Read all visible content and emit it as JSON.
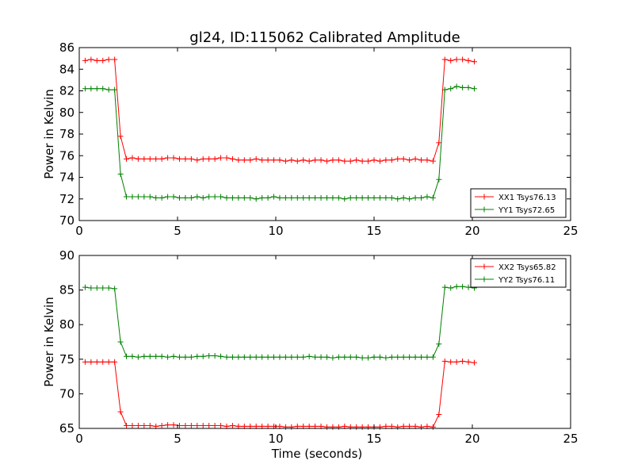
{
  "title": "gl24, ID:115062 Calibrated Amplitude",
  "chart_data": [
    {
      "type": "line",
      "ylabel": "Power in Kelvin",
      "xlabel": "",
      "xlim": [
        0,
        25
      ],
      "ylim": [
        70,
        86
      ],
      "xticks": [
        0,
        5,
        10,
        15,
        20,
        25
      ],
      "yticks": [
        70,
        72,
        74,
        76,
        78,
        80,
        82,
        84,
        86
      ],
      "legend_position": "lower-right",
      "series": [
        {
          "name": "XX1 Tsys76.13",
          "color": "#ff0000",
          "x": [
            0.3,
            0.6,
            0.9,
            1.2,
            1.5,
            1.8,
            2.1,
            2.4,
            2.7,
            3.0,
            3.3,
            3.6,
            3.9,
            4.2,
            4.5,
            4.8,
            5.1,
            5.4,
            5.7,
            6.0,
            6.3,
            6.6,
            6.9,
            7.2,
            7.5,
            7.8,
            8.1,
            8.4,
            8.7,
            9.0,
            9.3,
            9.6,
            9.9,
            10.2,
            10.5,
            10.8,
            11.1,
            11.4,
            11.7,
            12.0,
            12.3,
            12.6,
            12.9,
            13.2,
            13.5,
            13.8,
            14.1,
            14.4,
            14.7,
            15.0,
            15.3,
            15.6,
            15.9,
            16.2,
            16.5,
            16.8,
            17.1,
            17.4,
            17.7,
            18.0,
            18.3,
            18.6,
            18.9,
            19.2,
            19.5,
            19.8,
            20.1
          ],
          "values": [
            84.8,
            84.9,
            84.8,
            84.8,
            84.9,
            84.9,
            77.8,
            75.7,
            75.8,
            75.7,
            75.7,
            75.7,
            75.7,
            75.7,
            75.8,
            75.8,
            75.7,
            75.7,
            75.7,
            75.6,
            75.7,
            75.7,
            75.7,
            75.8,
            75.8,
            75.7,
            75.6,
            75.6,
            75.6,
            75.7,
            75.6,
            75.6,
            75.6,
            75.6,
            75.5,
            75.6,
            75.5,
            75.6,
            75.5,
            75.6,
            75.6,
            75.5,
            75.6,
            75.6,
            75.5,
            75.5,
            75.6,
            75.5,
            75.5,
            75.6,
            75.5,
            75.6,
            75.6,
            75.7,
            75.7,
            75.6,
            75.7,
            75.6,
            75.6,
            75.5,
            77.2,
            84.9,
            84.8,
            84.9,
            84.9,
            84.8,
            84.7
          ]
        },
        {
          "name": "YY1 Tsys72.65",
          "color": "#008000",
          "x": [
            0.3,
            0.6,
            0.9,
            1.2,
            1.5,
            1.8,
            2.1,
            2.4,
            2.7,
            3.0,
            3.3,
            3.6,
            3.9,
            4.2,
            4.5,
            4.8,
            5.1,
            5.4,
            5.7,
            6.0,
            6.3,
            6.6,
            6.9,
            7.2,
            7.5,
            7.8,
            8.1,
            8.4,
            8.7,
            9.0,
            9.3,
            9.6,
            9.9,
            10.2,
            10.5,
            10.8,
            11.1,
            11.4,
            11.7,
            12.0,
            12.3,
            12.6,
            12.9,
            13.2,
            13.5,
            13.8,
            14.1,
            14.4,
            14.7,
            15.0,
            15.3,
            15.6,
            15.9,
            16.2,
            16.5,
            16.8,
            17.1,
            17.4,
            17.7,
            18.0,
            18.3,
            18.6,
            18.9,
            19.2,
            19.5,
            19.8,
            20.1
          ],
          "values": [
            82.2,
            82.2,
            82.2,
            82.2,
            82.1,
            82.1,
            74.3,
            72.2,
            72.2,
            72.2,
            72.2,
            72.2,
            72.1,
            72.1,
            72.2,
            72.2,
            72.1,
            72.1,
            72.1,
            72.2,
            72.1,
            72.2,
            72.2,
            72.2,
            72.1,
            72.1,
            72.1,
            72.1,
            72.1,
            72.0,
            72.1,
            72.1,
            72.2,
            72.1,
            72.1,
            72.1,
            72.1,
            72.1,
            72.1,
            72.1,
            72.1,
            72.1,
            72.1,
            72.1,
            72.0,
            72.1,
            72.1,
            72.1,
            72.1,
            72.1,
            72.1,
            72.1,
            72.1,
            72.0,
            72.1,
            72.0,
            72.1,
            72.1,
            72.2,
            72.1,
            73.8,
            82.1,
            82.2,
            82.4,
            82.3,
            82.3,
            82.2
          ]
        }
      ]
    },
    {
      "type": "line",
      "ylabel": "Power in Kelvin",
      "xlabel": "Time (seconds)",
      "xlim": [
        0,
        25
      ],
      "ylim": [
        65,
        90
      ],
      "xticks": [
        0,
        5,
        10,
        15,
        20,
        25
      ],
      "yticks": [
        65,
        70,
        75,
        80,
        85,
        90
      ],
      "legend_position": "upper-right",
      "series": [
        {
          "name": "XX2 Tsys65.82",
          "color": "#ff0000",
          "x": [
            0.3,
            0.6,
            0.9,
            1.2,
            1.5,
            1.8,
            2.1,
            2.4,
            2.7,
            3.0,
            3.3,
            3.6,
            3.9,
            4.2,
            4.5,
            4.8,
            5.1,
            5.4,
            5.7,
            6.0,
            6.3,
            6.6,
            6.9,
            7.2,
            7.5,
            7.8,
            8.1,
            8.4,
            8.7,
            9.0,
            9.3,
            9.6,
            9.9,
            10.2,
            10.5,
            10.8,
            11.1,
            11.4,
            11.7,
            12.0,
            12.3,
            12.6,
            12.9,
            13.2,
            13.5,
            13.8,
            14.1,
            14.4,
            14.7,
            15.0,
            15.3,
            15.6,
            15.9,
            16.2,
            16.5,
            16.8,
            17.1,
            17.4,
            17.7,
            18.0,
            18.3,
            18.6,
            18.9,
            19.2,
            19.5,
            19.8,
            20.1
          ],
          "values": [
            74.6,
            74.6,
            74.6,
            74.6,
            74.6,
            74.6,
            67.4,
            65.4,
            65.4,
            65.4,
            65.4,
            65.4,
            65.3,
            65.4,
            65.5,
            65.5,
            65.4,
            65.4,
            65.4,
            65.4,
            65.4,
            65.4,
            65.4,
            65.4,
            65.3,
            65.4,
            65.3,
            65.3,
            65.3,
            65.3,
            65.3,
            65.3,
            65.3,
            65.3,
            65.2,
            65.2,
            65.3,
            65.3,
            65.3,
            65.3,
            65.3,
            65.2,
            65.2,
            65.2,
            65.3,
            65.2,
            65.2,
            65.2,
            65.2,
            65.2,
            65.2,
            65.3,
            65.3,
            65.2,
            65.3,
            65.3,
            65.3,
            65.2,
            65.3,
            65.2,
            67.0,
            74.7,
            74.6,
            74.6,
            74.7,
            74.6,
            74.5
          ]
        },
        {
          "name": "YY2 Tsys76.11",
          "color": "#008000",
          "x": [
            0.3,
            0.6,
            0.9,
            1.2,
            1.5,
            1.8,
            2.1,
            2.4,
            2.7,
            3.0,
            3.3,
            3.6,
            3.9,
            4.2,
            4.5,
            4.8,
            5.1,
            5.4,
            5.7,
            6.0,
            6.3,
            6.6,
            6.9,
            7.2,
            7.5,
            7.8,
            8.1,
            8.4,
            8.7,
            9.0,
            9.3,
            9.6,
            9.9,
            10.2,
            10.5,
            10.8,
            11.1,
            11.4,
            11.7,
            12.0,
            12.3,
            12.6,
            12.9,
            13.2,
            13.5,
            13.8,
            14.1,
            14.4,
            14.7,
            15.0,
            15.3,
            15.6,
            15.9,
            16.2,
            16.5,
            16.8,
            17.1,
            17.4,
            17.7,
            18.0,
            18.3,
            18.6,
            18.9,
            19.2,
            19.5,
            19.8,
            20.1
          ],
          "values": [
            85.4,
            85.3,
            85.3,
            85.3,
            85.3,
            85.2,
            77.5,
            75.4,
            75.4,
            75.3,
            75.4,
            75.4,
            75.4,
            75.4,
            75.3,
            75.4,
            75.3,
            75.3,
            75.3,
            75.4,
            75.4,
            75.5,
            75.5,
            75.4,
            75.3,
            75.3,
            75.3,
            75.3,
            75.3,
            75.3,
            75.3,
            75.3,
            75.3,
            75.3,
            75.3,
            75.3,
            75.3,
            75.3,
            75.4,
            75.3,
            75.3,
            75.3,
            75.2,
            75.3,
            75.3,
            75.3,
            75.3,
            75.2,
            75.2,
            75.3,
            75.3,
            75.2,
            75.3,
            75.3,
            75.3,
            75.3,
            75.3,
            75.3,
            75.3,
            75.3,
            77.2,
            85.4,
            85.3,
            85.5,
            85.5,
            85.4,
            85.3
          ]
        }
      ]
    }
  ]
}
